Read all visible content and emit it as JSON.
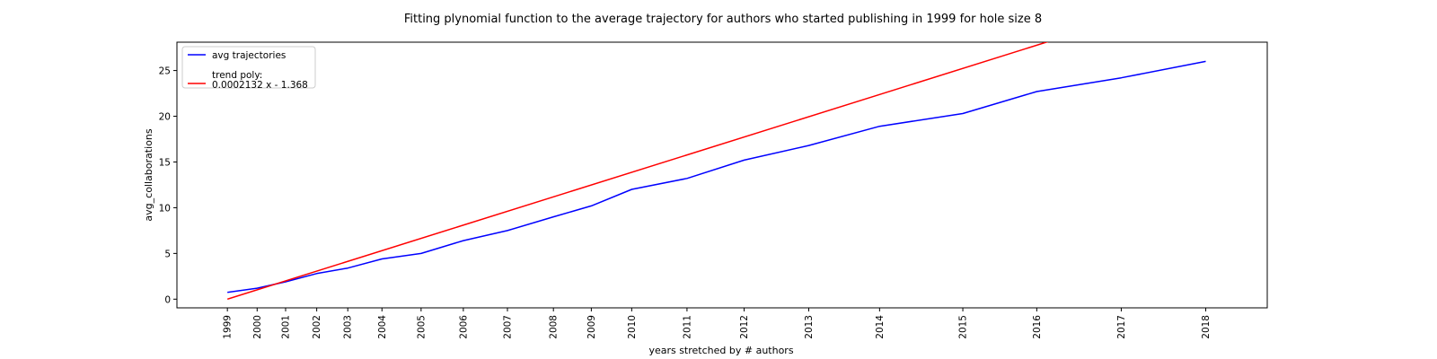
{
  "chart_data": {
    "type": "line",
    "title": "Fitting plynomial function to the average trajectory for authors who started publishing in 1999 for hole size 8",
    "xlabel": "years stretched by # authors",
    "ylabel": "avg_collaborations",
    "x_ticks": [
      {
        "label": "1999",
        "value": 6420
      },
      {
        "label": "2000",
        "value": 11210
      },
      {
        "label": "2001",
        "value": 15790
      },
      {
        "label": "2002",
        "value": 20800
      },
      {
        "label": "2003",
        "value": 25800
      },
      {
        "label": "2004",
        "value": 31300
      },
      {
        "label": "2005",
        "value": 37600
      },
      {
        "label": "2006",
        "value": 44400
      },
      {
        "label": "2007",
        "value": 51500
      },
      {
        "label": "2008",
        "value": 58900
      },
      {
        "label": "2009",
        "value": 65000
      },
      {
        "label": "2010",
        "value": 71500
      },
      {
        "label": "2011",
        "value": 80400
      },
      {
        "label": "2012",
        "value": 89600
      },
      {
        "label": "2013",
        "value": 100000
      },
      {
        "label": "2014",
        "value": 111400
      },
      {
        "label": "2015",
        "value": 124800
      },
      {
        "label": "2016",
        "value": 136700
      },
      {
        "label": "2017",
        "value": 150300
      },
      {
        "label": "2018",
        "value": 163900
      }
    ],
    "y_ticks": [
      0,
      5,
      10,
      15,
      20,
      25
    ],
    "xlim": [
      -1700,
      173800
    ],
    "ylim": [
      -0.95,
      28.1
    ],
    "grid": false,
    "legend_position": "top-left",
    "series": [
      {
        "name": "avg trajectories",
        "color": "#0000ff",
        "x": [
          6420,
          11210,
          15790,
          20800,
          25800,
          31300,
          37600,
          44400,
          51500,
          58900,
          65000,
          71500,
          80400,
          89600,
          100000,
          111400,
          124800,
          136700,
          150300,
          163900
        ],
        "y": [
          0.75,
          1.2,
          1.9,
          2.8,
          3.4,
          4.4,
          5.0,
          6.4,
          7.5,
          9.0,
          10.2,
          12.0,
          13.2,
          15.2,
          16.8,
          18.9,
          20.3,
          22.7,
          24.2,
          26.0
        ]
      },
      {
        "name": "trend poly:\n0.0002132 x - 1.368",
        "color": "#ff0000",
        "x": [
          6420,
          163900
        ],
        "y": [
          0.0008,
          33.57
        ]
      }
    ]
  },
  "legend": {
    "entries": [
      {
        "lines": [
          "avg trajectories"
        ],
        "color": "#0000ff"
      },
      {
        "lines": [
          "trend poly:",
          "0.0002132 x - 1.368"
        ],
        "color": "#ff0000"
      }
    ]
  }
}
